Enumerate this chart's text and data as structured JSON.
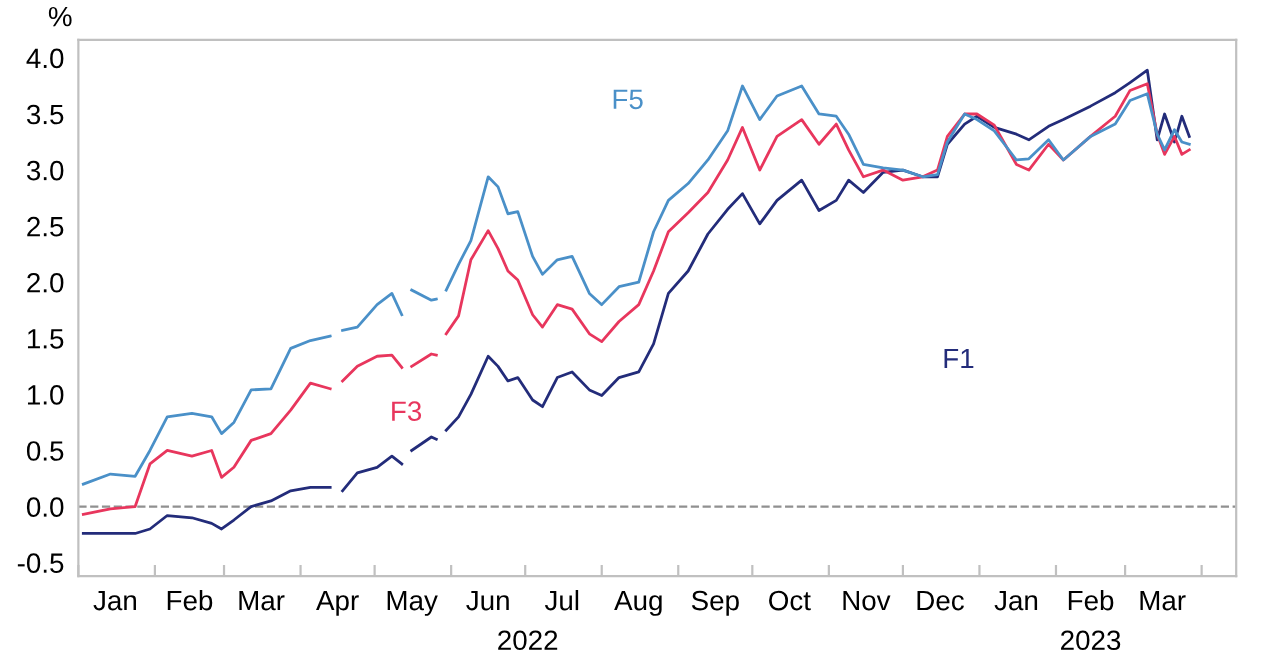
{
  "chart_data": {
    "type": "line",
    "ylabel": "%",
    "x": [
      "2022-01-03",
      "2022-01-14",
      "2022-01-24",
      "2022-01-30",
      "2022-02-06",
      "2022-02-16",
      "2022-02-24",
      "2022-02-28",
      "2022-03-05",
      "2022-03-12",
      "2022-03-20",
      "2022-03-28",
      "2022-04-05",
      "2022-04-13",
      "2022-04-15",
      "2022-04-18",
      "2022-04-24",
      "2022-05-02",
      "2022-05-08",
      "2022-05-12",
      "2022-05-13",
      "2022-05-16",
      "2022-05-24",
      "2022-05-26",
      "2022-05-28",
      "2022-05-30",
      "2022-06-04",
      "2022-06-09",
      "2022-06-16",
      "2022-06-20",
      "2022-06-24",
      "2022-06-28",
      "2022-07-04",
      "2022-07-08",
      "2022-07-14",
      "2022-07-20",
      "2022-07-27",
      "2022-08-01",
      "2022-08-08",
      "2022-08-16",
      "2022-08-22",
      "2022-08-28",
      "2022-09-05",
      "2022-09-13",
      "2022-09-21",
      "2022-09-27",
      "2022-10-04",
      "2022-10-11",
      "2022-10-21",
      "2022-10-28",
      "2022-11-04",
      "2022-11-09",
      "2022-11-15",
      "2022-11-23",
      "2022-12-01",
      "2022-12-09",
      "2022-12-15",
      "2022-12-19",
      "2022-12-26",
      "2022-12-31",
      "2023-01-07",
      "2023-01-16",
      "2023-01-21",
      "2023-01-29",
      "2023-02-04",
      "2023-02-15",
      "2023-02-25",
      "2023-03-03",
      "2023-03-10",
      "2023-03-14",
      "2023-03-17",
      "2023-03-21",
      "2023-03-24",
      "2023-03-27"
    ],
    "series": [
      {
        "name": "F1",
        "color": "#232c7a",
        "values": [
          -0.24,
          -0.24,
          -0.24,
          -0.2,
          -0.08,
          -0.1,
          -0.15,
          -0.2,
          -0.12,
          0.0,
          0.05,
          0.14,
          0.17,
          0.17,
          null,
          0.14,
          0.3,
          0.35,
          0.45,
          0.38,
          null,
          0.5,
          0.62,
          0.6,
          null,
          0.68,
          0.8,
          1.0,
          1.34,
          1.25,
          1.12,
          1.15,
          0.95,
          0.89,
          1.15,
          1.2,
          1.04,
          0.99,
          1.15,
          1.2,
          1.45,
          1.9,
          2.1,
          2.43,
          2.65,
          2.79,
          2.52,
          2.73,
          2.91,
          2.64,
          2.73,
          2.91,
          2.8,
          2.98,
          3.0,
          2.94,
          2.94,
          3.23,
          3.41,
          3.48,
          3.38,
          3.32,
          3.27,
          3.39,
          3.45,
          3.57,
          3.69,
          3.78,
          3.89,
          3.27,
          3.5,
          3.25,
          3.48,
          3.3
        ]
      },
      {
        "name": "F3",
        "color": "#e8365d",
        "values": [
          -0.07,
          -0.02,
          0.0,
          0.38,
          0.5,
          0.45,
          0.5,
          0.26,
          0.35,
          0.59,
          0.65,
          0.86,
          1.1,
          1.05,
          null,
          1.12,
          1.25,
          1.34,
          1.35,
          1.24,
          null,
          1.25,
          1.36,
          1.35,
          null,
          1.54,
          1.7,
          2.2,
          2.46,
          2.3,
          2.1,
          2.02,
          1.71,
          1.6,
          1.8,
          1.76,
          1.54,
          1.47,
          1.65,
          1.8,
          2.1,
          2.45,
          2.62,
          2.8,
          3.09,
          3.38,
          3.0,
          3.3,
          3.45,
          3.23,
          3.41,
          3.18,
          2.94,
          3.0,
          2.91,
          2.94,
          3.0,
          3.3,
          3.5,
          3.5,
          3.4,
          3.05,
          3.0,
          3.23,
          3.09,
          3.3,
          3.48,
          3.71,
          3.77,
          3.32,
          3.14,
          3.3,
          3.14,
          3.18
        ]
      },
      {
        "name": "F5",
        "color": "#4a90c8",
        "values": [
          0.2,
          0.29,
          0.27,
          0.5,
          0.8,
          0.83,
          0.8,
          0.65,
          0.75,
          1.04,
          1.05,
          1.41,
          1.48,
          1.52,
          null,
          1.57,
          1.6,
          1.8,
          1.9,
          1.71,
          null,
          1.93,
          1.84,
          1.85,
          null,
          1.93,
          2.16,
          2.37,
          2.94,
          2.85,
          2.61,
          2.63,
          2.23,
          2.07,
          2.2,
          2.23,
          1.9,
          1.8,
          1.96,
          2.0,
          2.45,
          2.73,
          2.88,
          3.09,
          3.35,
          3.75,
          3.45,
          3.66,
          3.75,
          3.5,
          3.48,
          3.32,
          3.05,
          3.02,
          3.0,
          2.94,
          2.96,
          3.25,
          3.5,
          3.45,
          3.35,
          3.09,
          3.1,
          3.27,
          3.09,
          3.3,
          3.41,
          3.62,
          3.68,
          3.32,
          3.18,
          3.36,
          3.25,
          3.23
        ]
      }
    ],
    "xlim": [
      "2022-01-01",
      "2023-04-15"
    ],
    "xticks": [
      {
        "value": "2022-01-01",
        "label": null
      },
      {
        "value": "2022-01-16",
        "label": "Jan"
      },
      {
        "value": "2022-02-01",
        "label": null
      },
      {
        "value": "2022-02-15",
        "label": "Feb"
      },
      {
        "value": "2022-03-01",
        "label": null
      },
      {
        "value": "2022-03-16",
        "label": "Mar"
      },
      {
        "value": "2022-04-01",
        "label": null
      },
      {
        "value": "2022-04-16",
        "label": "Apr"
      },
      {
        "value": "2022-05-01",
        "label": null
      },
      {
        "value": "2022-05-16",
        "label": "May"
      },
      {
        "value": "2022-06-01",
        "label": null
      },
      {
        "value": "2022-06-16",
        "label": "Jun"
      },
      {
        "value": "2022-07-01",
        "label": null
      },
      {
        "value": "2022-07-16",
        "label": "Jul"
      },
      {
        "value": "2022-08-01",
        "label": null
      },
      {
        "value": "2022-08-16",
        "label": "Aug"
      },
      {
        "value": "2022-09-01",
        "label": null
      },
      {
        "value": "2022-09-16",
        "label": "Sep"
      },
      {
        "value": "2022-10-01",
        "label": null
      },
      {
        "value": "2022-10-16",
        "label": "Oct"
      },
      {
        "value": "2022-11-01",
        "label": null
      },
      {
        "value": "2022-11-16",
        "label": "Nov"
      },
      {
        "value": "2022-12-01",
        "label": null
      },
      {
        "value": "2022-12-16",
        "label": "Dec"
      },
      {
        "value": "2023-01-01",
        "label": null
      },
      {
        "value": "2023-01-16",
        "label": "Jan"
      },
      {
        "value": "2023-02-01",
        "label": null
      },
      {
        "value": "2023-02-15",
        "label": "Feb"
      },
      {
        "value": "2023-03-01",
        "label": null
      },
      {
        "value": "2023-03-16",
        "label": "Mar"
      },
      {
        "value": "2023-04-01",
        "label": null
      }
    ],
    "ylim": [
      -0.62,
      4.16
    ],
    "yticks": [
      -0.5,
      {
        "value": 0,
        "label": "0.0"
      },
      0.5,
      {
        "value": 1,
        "label": "1.0"
      },
      1.5,
      {
        "value": 2,
        "label": "2.0"
      },
      2.5,
      {
        "value": 3,
        "label": "3.0"
      },
      3.5,
      {
        "value": 4,
        "label": "4.0"
      }
    ],
    "ref_lines": [
      {
        "axis": "y",
        "value": 0.0,
        "color": "#909090",
        "line_style": "dashed"
      }
    ],
    "annotations": [
      "2022",
      "2023"
    ],
    "grid": false,
    "legend": false,
    "marker": "none",
    "line_style": "solid"
  }
}
